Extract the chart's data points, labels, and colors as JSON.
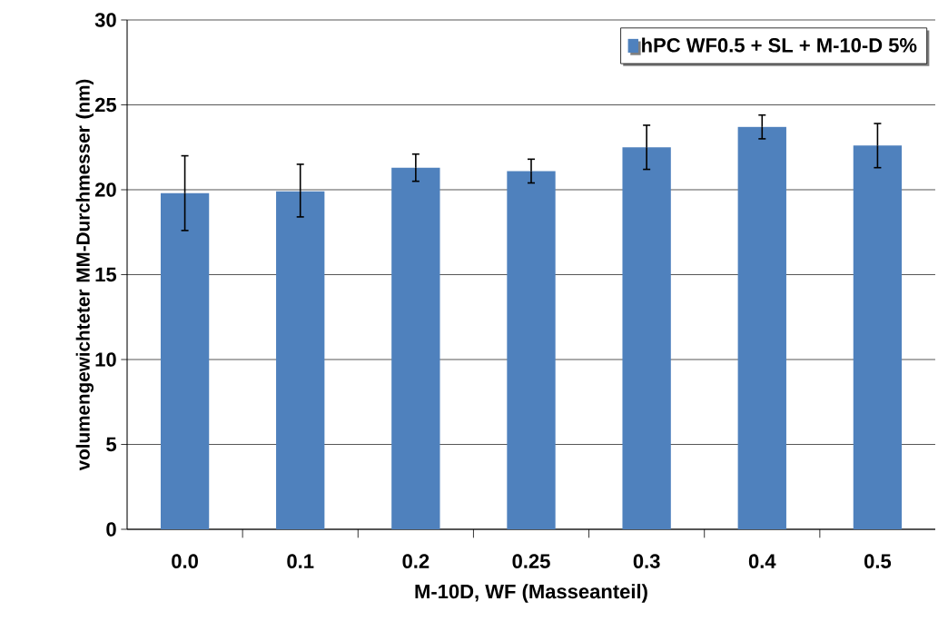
{
  "chart_data": {
    "type": "bar",
    "xlabel": "M-10D, WF (Masseanteil)",
    "ylabel": "volumengewichteter MM-Durchmesser (nm)",
    "categories": [
      "0.0",
      "0.1",
      "0.2",
      "0.25",
      "0.3",
      "0.4",
      "0.5"
    ],
    "series": [
      {
        "name": "hPC WF0.5 + SL + M-10-D 5%",
        "color": "#4f81bd",
        "values": [
          19.8,
          19.9,
          21.3,
          21.1,
          22.5,
          23.7,
          22.6
        ],
        "errors": [
          [
            17.6,
            22.0
          ],
          [
            18.4,
            21.5
          ],
          [
            20.5,
            22.1
          ],
          [
            20.4,
            21.8
          ],
          [
            21.2,
            23.8
          ],
          [
            23.0,
            24.4
          ],
          [
            21.3,
            23.9
          ]
        ]
      }
    ],
    "ylim": [
      0,
      30
    ],
    "yticks": [
      0,
      5,
      10,
      15,
      20,
      25,
      30
    ],
    "grid": "y",
    "legend": "top right"
  }
}
